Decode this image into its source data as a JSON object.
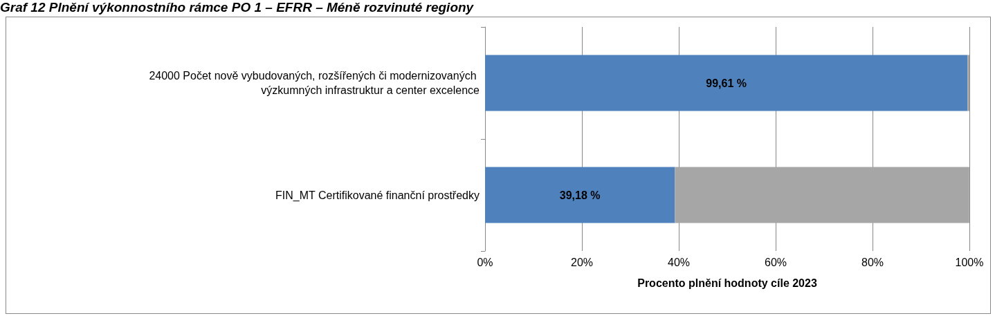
{
  "chart_data": {
    "type": "bar",
    "orientation": "horizontal",
    "stacked": true,
    "title": "Graf 12 Plnění výkonnostního rámce PO 1 – EFRR – Méně rozvinuté regiony",
    "xlabel": "Procento plnění hodnoty cíle 2023",
    "categories": [
      "24000 Počet nově vybudovaných, rozšířených či modernizovaných výzkumných infrastruktur a center excelence",
      "FIN_MT Certifikované finanční prostředky"
    ],
    "series": [
      {
        "color": "#4f81bd",
        "values": [
          99.61,
          39.18
        ],
        "value_labels": [
          "99,61 %",
          "39,18 %"
        ]
      },
      {
        "color": "#a6a6a6",
        "values": [
          0.4,
          60.8
        ]
      }
    ],
    "xlim": [
      0,
      100
    ],
    "xticks": [
      {
        "value": 0,
        "label": "0%"
      },
      {
        "value": 20,
        "label": "20%"
      },
      {
        "value": 40,
        "label": "40%"
      },
      {
        "value": 60,
        "label": "60%"
      },
      {
        "value": 80,
        "label": "80%"
      },
      {
        "value": 100,
        "label": "100%"
      }
    ],
    "grid": "x"
  }
}
